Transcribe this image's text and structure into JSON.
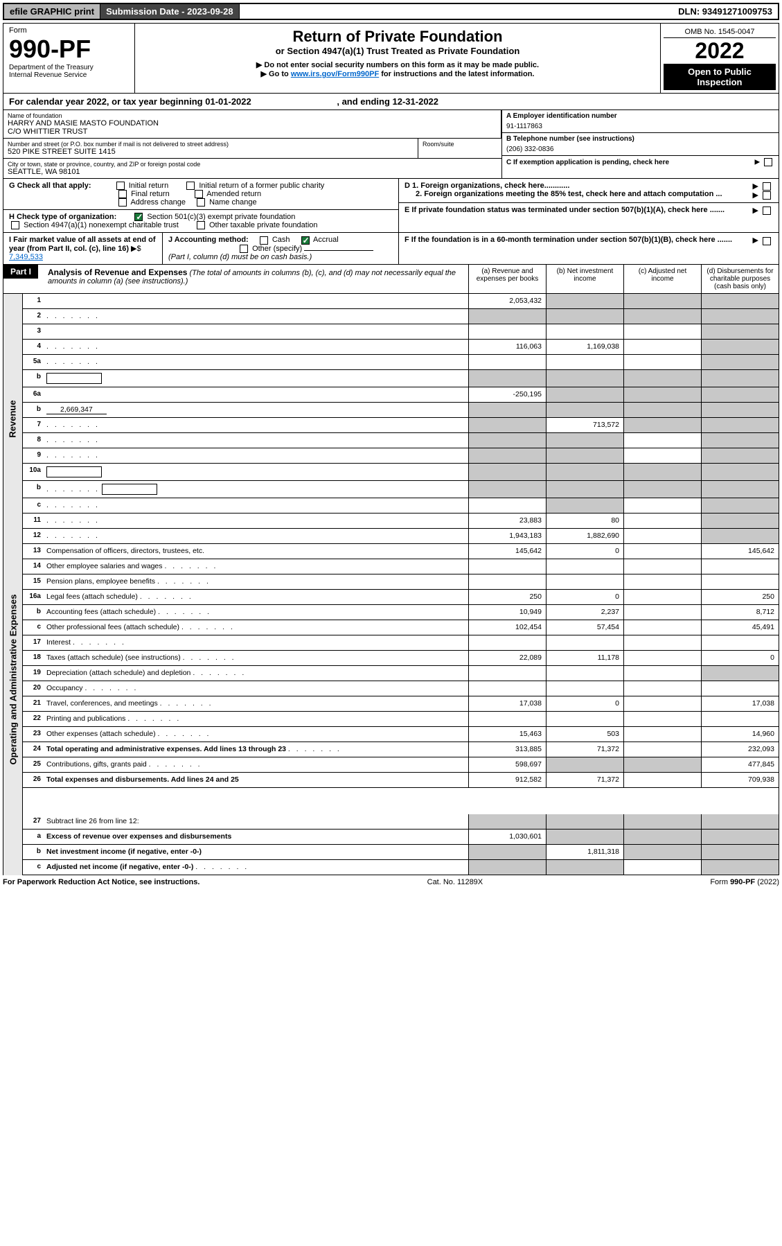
{
  "top": {
    "efile": "efile GRAPHIC print",
    "subdate_label": "Submission Date - 2023-09-28",
    "dln": "DLN: 93491271009753"
  },
  "header": {
    "form_word": "Form",
    "form_num": "990-PF",
    "dept": "Department of the Treasury",
    "irs": "Internal Revenue Service",
    "title": "Return of Private Foundation",
    "subtitle": "or Section 4947(a)(1) Trust Treated as Private Foundation",
    "instr1": "▶ Do not enter social security numbers on this form as it may be made public.",
    "instr2_pre": "▶ Go to ",
    "instr2_link": "www.irs.gov/Form990PF",
    "instr2_post": " for instructions and the latest information.",
    "omb": "OMB No. 1545-0047",
    "year": "2022",
    "open_pub": "Open to Public Inspection"
  },
  "cal_year": {
    "text_pre": "For calendar year 2022, or tax year beginning ",
    "begin": "01-01-2022",
    "text_mid": " , and ending ",
    "end": "12-31-2022"
  },
  "name_block": {
    "label": "Name of foundation",
    "line1": "HARRY AND MASIE MASTO FOUNDATION",
    "line2": "C/O WHITTIER TRUST",
    "ein_label": "A Employer identification number",
    "ein": "91-1117863"
  },
  "addr_block": {
    "label": "Number and street (or P.O. box number if mail is not delivered to street address)",
    "street": "520 PIKE STREET SUITE 1415",
    "room_label": "Room/suite",
    "phone_label": "B Telephone number (see instructions)",
    "phone": "(206) 332-0836"
  },
  "city_block": {
    "label": "City or town, state or province, country, and ZIP or foreign postal code",
    "city": "SEATTLE, WA  98101",
    "c_label": "C If exemption application is pending, check here"
  },
  "g_block": {
    "label": "G Check all that apply:",
    "opts": [
      "Initial return",
      "Initial return of a former public charity",
      "Final return",
      "Amended return",
      "Address change",
      "Name change"
    ],
    "d1": "D 1. Foreign organizations, check here............",
    "d2": "2. Foreign organizations meeting the 85% test, check here and attach computation ...",
    "e": "E  If private foundation status was terminated under section 507(b)(1)(A), check here ......."
  },
  "h_block": {
    "label": "H Check type of organization:",
    "opt1": "Section 501(c)(3) exempt private foundation",
    "opt2": "Section 4947(a)(1) nonexempt charitable trust",
    "opt3": "Other taxable private foundation"
  },
  "ij_block": {
    "i_label": "I Fair market value of all assets at end of year (from Part II, col. (c), line 16)",
    "i_val": "7,349,533",
    "j_label": "J Accounting method:",
    "j_cash": "Cash",
    "j_accrual": "Accrual",
    "j_other": "Other (specify)",
    "j_note": "(Part I, column (d) must be on cash basis.)",
    "f_label": "F  If the foundation is in a 60-month termination under section 507(b)(1)(B), check here ......."
  },
  "part1": {
    "hdr": "Part I",
    "title": "Analysis of Revenue and Expenses",
    "note": " (The total of amounts in columns (b), (c), and (d) may not necessarily equal the amounts in column (a) (see instructions).)",
    "col_a": "(a) Revenue and expenses per books",
    "col_b": "(b) Net investment income",
    "col_c": "(c) Adjusted net income",
    "col_d": "(d) Disbursements for charitable purposes (cash basis only)"
  },
  "revenue": {
    "label": "Revenue",
    "rows": [
      {
        "n": "1",
        "d": "",
        "a": "2,053,432",
        "b": "",
        "c": "",
        "grey_b": true,
        "grey_c": true,
        "grey_d": true
      },
      {
        "n": "2",
        "d": "",
        "dots": true,
        "a": "",
        "b": "",
        "c": "",
        "grey_all": true
      },
      {
        "n": "3",
        "d": "",
        "a": "",
        "b": "",
        "c": "",
        "grey_d": true
      },
      {
        "n": "4",
        "d": "",
        "dots": true,
        "a": "116,063",
        "b": "1,169,038",
        "c": "",
        "grey_d": true
      },
      {
        "n": "5a",
        "d": "",
        "dots": true,
        "a": "",
        "b": "",
        "c": "",
        "grey_d": true
      },
      {
        "n": "b",
        "d": "",
        "box": true,
        "a": "",
        "b": "",
        "c": "",
        "grey_all": true
      },
      {
        "n": "6a",
        "d": "",
        "a": "-250,195",
        "b": "",
        "c": "",
        "grey_b": true,
        "grey_c": true,
        "grey_d": true
      },
      {
        "n": "b",
        "d": "",
        "inline_val": "2,669,347",
        "a": "",
        "b": "",
        "c": "",
        "grey_all": true
      },
      {
        "n": "7",
        "d": "",
        "dots": true,
        "a": "",
        "b": "713,572",
        "c": "",
        "grey_a": true,
        "grey_c": true,
        "grey_d": true
      },
      {
        "n": "8",
        "d": "",
        "dots": true,
        "a": "",
        "b": "",
        "c": "",
        "grey_a": true,
        "grey_b": true,
        "grey_d": true
      },
      {
        "n": "9",
        "d": "",
        "dots": true,
        "a": "",
        "b": "",
        "c": "",
        "grey_a": true,
        "grey_b": true,
        "grey_d": true
      },
      {
        "n": "10a",
        "d": "",
        "box": true,
        "a": "",
        "b": "",
        "c": "",
        "grey_all": true
      },
      {
        "n": "b",
        "d": "",
        "dots": true,
        "box": true,
        "a": "",
        "b": "",
        "c": "",
        "grey_all": true
      },
      {
        "n": "c",
        "d": "",
        "dots": true,
        "a": "",
        "b": "",
        "c": "",
        "grey_b": true,
        "grey_d": true
      },
      {
        "n": "11",
        "d": "",
        "dots": true,
        "a": "23,883",
        "b": "80",
        "c": "",
        "grey_d": true
      },
      {
        "n": "12",
        "d": "",
        "dots": true,
        "bold": true,
        "a": "1,943,183",
        "b": "1,882,690",
        "c": "",
        "grey_d": true
      }
    ]
  },
  "expenses": {
    "label": "Operating and Administrative Expenses",
    "rows": [
      {
        "n": "13",
        "d": "Compensation of officers, directors, trustees, etc.",
        "a": "145,642",
        "b": "0",
        "c": "",
        "dv": "145,642"
      },
      {
        "n": "14",
        "d": "Other employee salaries and wages",
        "dots": true,
        "a": "",
        "b": "",
        "c": "",
        "dv": ""
      },
      {
        "n": "15",
        "d": "Pension plans, employee benefits",
        "dots": true,
        "a": "",
        "b": "",
        "c": "",
        "dv": ""
      },
      {
        "n": "16a",
        "d": "Legal fees (attach schedule)",
        "dots": true,
        "a": "250",
        "b": "0",
        "c": "",
        "dv": "250"
      },
      {
        "n": "b",
        "d": "Accounting fees (attach schedule)",
        "dots": true,
        "a": "10,949",
        "b": "2,237",
        "c": "",
        "dv": "8,712"
      },
      {
        "n": "c",
        "d": "Other professional fees (attach schedule)",
        "dots": true,
        "a": "102,454",
        "b": "57,454",
        "c": "",
        "dv": "45,491"
      },
      {
        "n": "17",
        "d": "Interest",
        "dots": true,
        "a": "",
        "b": "",
        "c": "",
        "dv": ""
      },
      {
        "n": "18",
        "d": "Taxes (attach schedule) (see instructions)",
        "dots": true,
        "a": "22,089",
        "b": "11,178",
        "c": "",
        "dv": "0"
      },
      {
        "n": "19",
        "d": "Depreciation (attach schedule) and depletion",
        "dots": true,
        "a": "",
        "b": "",
        "c": "",
        "dv": "",
        "grey_d": true
      },
      {
        "n": "20",
        "d": "Occupancy",
        "dots": true,
        "a": "",
        "b": "",
        "c": "",
        "dv": ""
      },
      {
        "n": "21",
        "d": "Travel, conferences, and meetings",
        "dots": true,
        "a": "17,038",
        "b": "0",
        "c": "",
        "dv": "17,038"
      },
      {
        "n": "22",
        "d": "Printing and publications",
        "dots": true,
        "a": "",
        "b": "",
        "c": "",
        "dv": ""
      },
      {
        "n": "23",
        "d": "Other expenses (attach schedule)",
        "dots": true,
        "a": "15,463",
        "b": "503",
        "c": "",
        "dv": "14,960"
      },
      {
        "n": "24",
        "d": "Total operating and administrative expenses. Add lines 13 through 23",
        "dots": true,
        "bold": true,
        "a": "313,885",
        "b": "71,372",
        "c": "",
        "dv": "232,093"
      },
      {
        "n": "25",
        "d": "Contributions, gifts, grants paid",
        "dots": true,
        "a": "598,697",
        "b": "",
        "c": "",
        "dv": "477,845",
        "grey_b": true,
        "grey_c": true
      },
      {
        "n": "26",
        "d": "Total expenses and disbursements. Add lines 24 and 25",
        "bold": true,
        "a": "912,582",
        "b": "71,372",
        "c": "",
        "dv": "709,938"
      }
    ]
  },
  "bottom": {
    "rows": [
      {
        "n": "27",
        "d": "Subtract line 26 from line 12:",
        "a": "",
        "b": "",
        "c": "",
        "dv": "",
        "grey_all": true
      },
      {
        "n": "a",
        "d": "Excess of revenue over expenses and disbursements",
        "bold": true,
        "a": "1,030,601",
        "b": "",
        "c": "",
        "dv": "",
        "grey_b": true,
        "grey_c": true,
        "grey_d": true
      },
      {
        "n": "b",
        "d": "Net investment income (if negative, enter -0-)",
        "bold": true,
        "a": "",
        "b": "1,811,318",
        "c": "",
        "dv": "",
        "grey_a": true,
        "grey_c": true,
        "grey_d": true
      },
      {
        "n": "c",
        "d": "Adjusted net income (if negative, enter -0-)",
        "dots": true,
        "bold": true,
        "a": "",
        "b": "",
        "c": "",
        "dv": "",
        "grey_a": true,
        "grey_b": true,
        "grey_d": true
      }
    ]
  },
  "footer": {
    "left": "For Paperwork Reduction Act Notice, see instructions.",
    "mid": "Cat. No. 11289X",
    "right": "Form 990-PF (2022)"
  }
}
